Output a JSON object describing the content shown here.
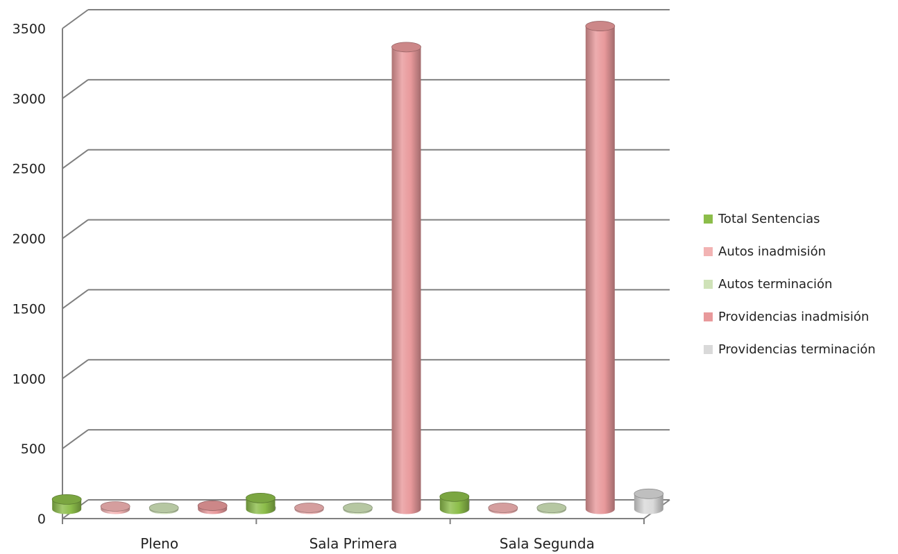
{
  "chart_data": {
    "type": "bar",
    "style": "3d-cylinder",
    "categories": [
      "Pleno",
      "Sala Primera",
      "Sala Segunda"
    ],
    "series": [
      {
        "name": "Total Sentencias",
        "values": [
          70,
          80,
          90
        ],
        "color": "#8cbd4a"
      },
      {
        "name": "Autos inadmisión",
        "values": [
          20,
          10,
          10
        ],
        "color": "#f2b3b3"
      },
      {
        "name": "Autos terminación",
        "values": [
          8,
          8,
          8
        ],
        "color": "#cfe2b8"
      },
      {
        "name": "Providencias inadmisión",
        "values": [
          25,
          3300,
          3450
        ],
        "color": "#e8999b"
      },
      {
        "name": "Providencias terminación",
        "values": [
          4,
          55,
          110
        ],
        "color": "#d9d9d9"
      }
    ],
    "ylim": [
      0,
      3500
    ],
    "yticks": [
      "0",
      "500",
      "1000",
      "1500",
      "2000",
      "2500",
      "3000",
      "3500"
    ],
    "grid": true,
    "legend_position": "right"
  }
}
